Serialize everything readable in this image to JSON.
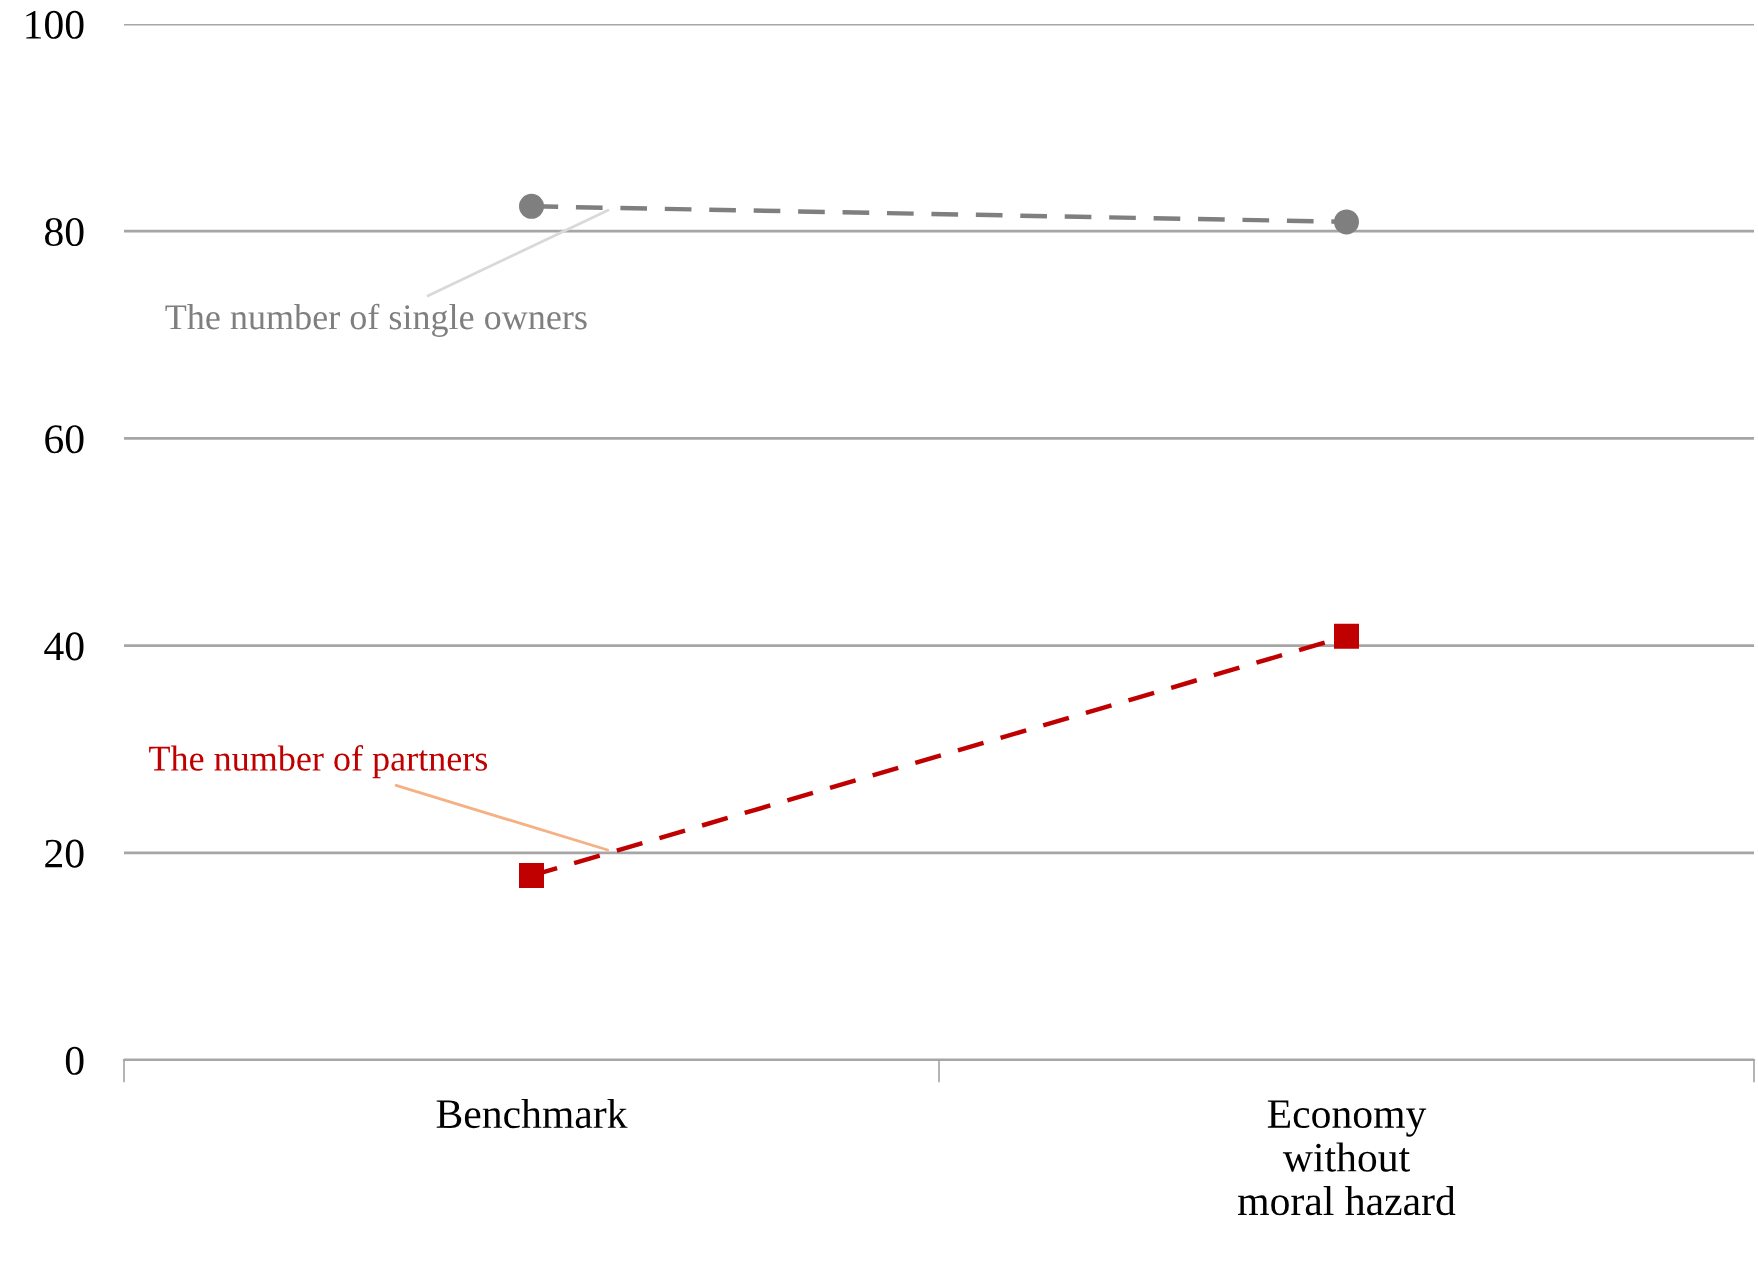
{
  "chart_data": {
    "type": "line",
    "categories": [
      "Benchmark",
      "Economy\nwithout\nmoral hazard"
    ],
    "series": [
      {
        "name": "The number of single owners",
        "color": "#7f7f7f",
        "marker": "circle",
        "values": [
          82.4,
          80.9
        ]
      },
      {
        "name": "The number of partners",
        "color": "#c00000",
        "marker": "square",
        "values": [
          17.8,
          40.9
        ]
      }
    ],
    "ylim": [
      0,
      100
    ],
    "yticks": [
      0,
      20,
      40,
      60,
      80,
      100
    ],
    "grid": "y",
    "line_style": "dashed",
    "legend": false
  }
}
